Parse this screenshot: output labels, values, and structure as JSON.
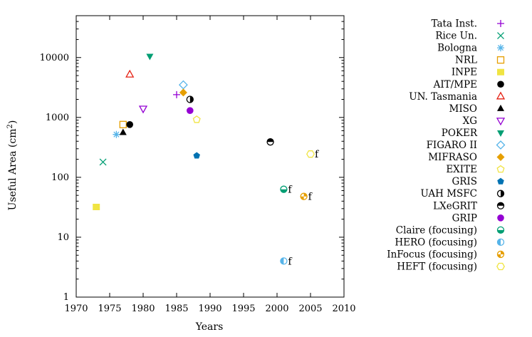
{
  "chart_data": {
    "type": "scatter",
    "title": "",
    "xlabel": "Years",
    "ylabel": "Useful Area (cm",
    "ylabel_sup": "2",
    "ylabel_close": ")",
    "xlim": [
      1970,
      2010
    ],
    "ylim": [
      1,
      50000
    ],
    "yscale": "log",
    "grid": false,
    "legend_position": "right",
    "x_ticks": [
      1970,
      1975,
      1980,
      1985,
      1990,
      1995,
      2000,
      2005,
      2010
    ],
    "y_ticks": [
      1,
      10,
      100,
      1000,
      10000
    ],
    "series": [
      {
        "name": "Tata Inst.",
        "marker": "plus",
        "color": "#9400d3",
        "points": [
          {
            "x": 1985,
            "y": 2400
          }
        ]
      },
      {
        "name": "Rice Un.",
        "marker": "cross",
        "color": "#009e73",
        "points": [
          {
            "x": 1974,
            "y": 180
          }
        ]
      },
      {
        "name": "Bologna",
        "marker": "star",
        "color": "#56b4e9",
        "points": [
          {
            "x": 1976,
            "y": 520
          }
        ]
      },
      {
        "name": "NRL",
        "marker": "square-open",
        "color": "#e69f00",
        "points": [
          {
            "x": 1977,
            "y": 760
          }
        ]
      },
      {
        "name": "INPE",
        "marker": "square-filled",
        "color": "#f0e442",
        "points": [
          {
            "x": 1973,
            "y": 32
          }
        ]
      },
      {
        "name": "AIT/MPE",
        "marker": "circle-filled",
        "color": "#000000",
        "points": [
          {
            "x": 1978,
            "y": 760
          }
        ]
      },
      {
        "name": "UN. Tasmania",
        "marker": "triangle-up-open",
        "color": "#e51e10",
        "points": [
          {
            "x": 1978,
            "y": 5200
          }
        ]
      },
      {
        "name": "MISO",
        "marker": "triangle-up-filled",
        "color": "#000000",
        "points": [
          {
            "x": 1977,
            "y": 560
          }
        ]
      },
      {
        "name": "XG",
        "marker": "triangle-down-open",
        "color": "#9400d3",
        "points": [
          {
            "x": 1980,
            "y": 1400
          }
        ]
      },
      {
        "name": "POKER",
        "marker": "triangle-down-filled",
        "color": "#009e73",
        "points": [
          {
            "x": 1981,
            "y": 10500
          }
        ]
      },
      {
        "name": "FIGARO II",
        "marker": "diamond-open",
        "color": "#56b4e9",
        "points": [
          {
            "x": 1986,
            "y": 3500
          }
        ]
      },
      {
        "name": "MIFRASO",
        "marker": "diamond-filled",
        "color": "#e69f00",
        "points": [
          {
            "x": 1986,
            "y": 2600
          }
        ]
      },
      {
        "name": "EXITE",
        "marker": "pentagon-open",
        "color": "#f0e442",
        "points": [
          {
            "x": 1988,
            "y": 920
          }
        ]
      },
      {
        "name": "GRIS",
        "marker": "pentagon-filled",
        "color": "#0072b2",
        "points": [
          {
            "x": 1988,
            "y": 230
          }
        ]
      },
      {
        "name": "UAH MSFC",
        "marker": "circle-half-right",
        "color": "#000000",
        "points": [
          {
            "x": 1987,
            "y": 2000
          }
        ]
      },
      {
        "name": "LXeGRIT",
        "marker": "circle-half-top",
        "color": "#000000",
        "points": [
          {
            "x": 1999,
            "y": 390
          }
        ]
      },
      {
        "name": "GRIP",
        "marker": "circle-filled",
        "color": "#9400d3",
        "points": [
          {
            "x": 1987,
            "y": 1300
          }
        ]
      },
      {
        "name": "Claire (focusing)",
        "marker": "circle-half-bottom",
        "color": "#009e73",
        "points": [
          {
            "x": 2001,
            "y": 63
          }
        ]
      },
      {
        "name": "HERO (focusing)",
        "marker": "circle-half-left",
        "color": "#56b4e9",
        "points": [
          {
            "x": 2001,
            "y": 4
          }
        ]
      },
      {
        "name": "InFocus (focusing)",
        "marker": "circle-quarters",
        "color": "#e69f00",
        "points": [
          {
            "x": 2004,
            "y": 48
          }
        ]
      },
      {
        "name": "HEFT (focusing)",
        "marker": "hexagon-open",
        "color": "#f0e442",
        "points": [
          {
            "x": 2005,
            "y": 245
          }
        ]
      }
    ],
    "annotations": [
      {
        "text": "f",
        "x": 2001,
        "y": 63
      },
      {
        "text": "f",
        "x": 2001,
        "y": 4
      },
      {
        "text": "f",
        "x": 2004,
        "y": 48
      },
      {
        "text": "f",
        "x": 2005,
        "y": 245
      }
    ]
  }
}
